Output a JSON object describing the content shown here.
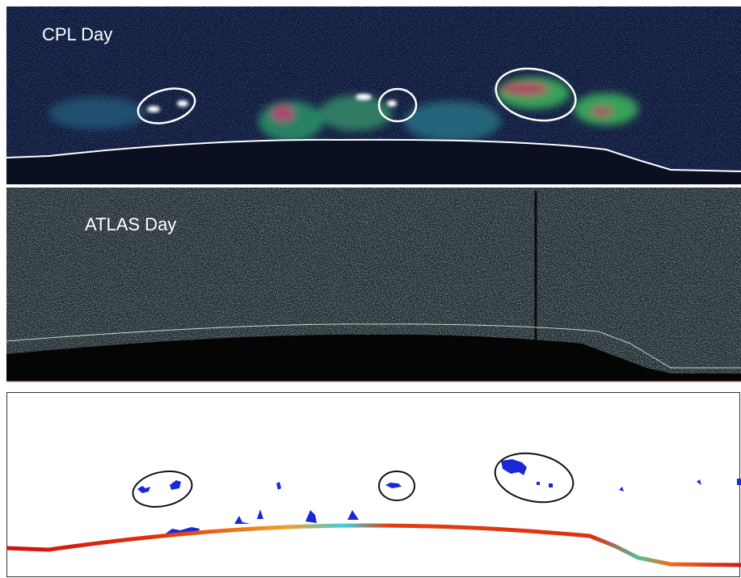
{
  "panels": {
    "cpl": {
      "label": "CPL Day"
    },
    "atlas": {
      "label": "ATLAS Day"
    }
  }
}
